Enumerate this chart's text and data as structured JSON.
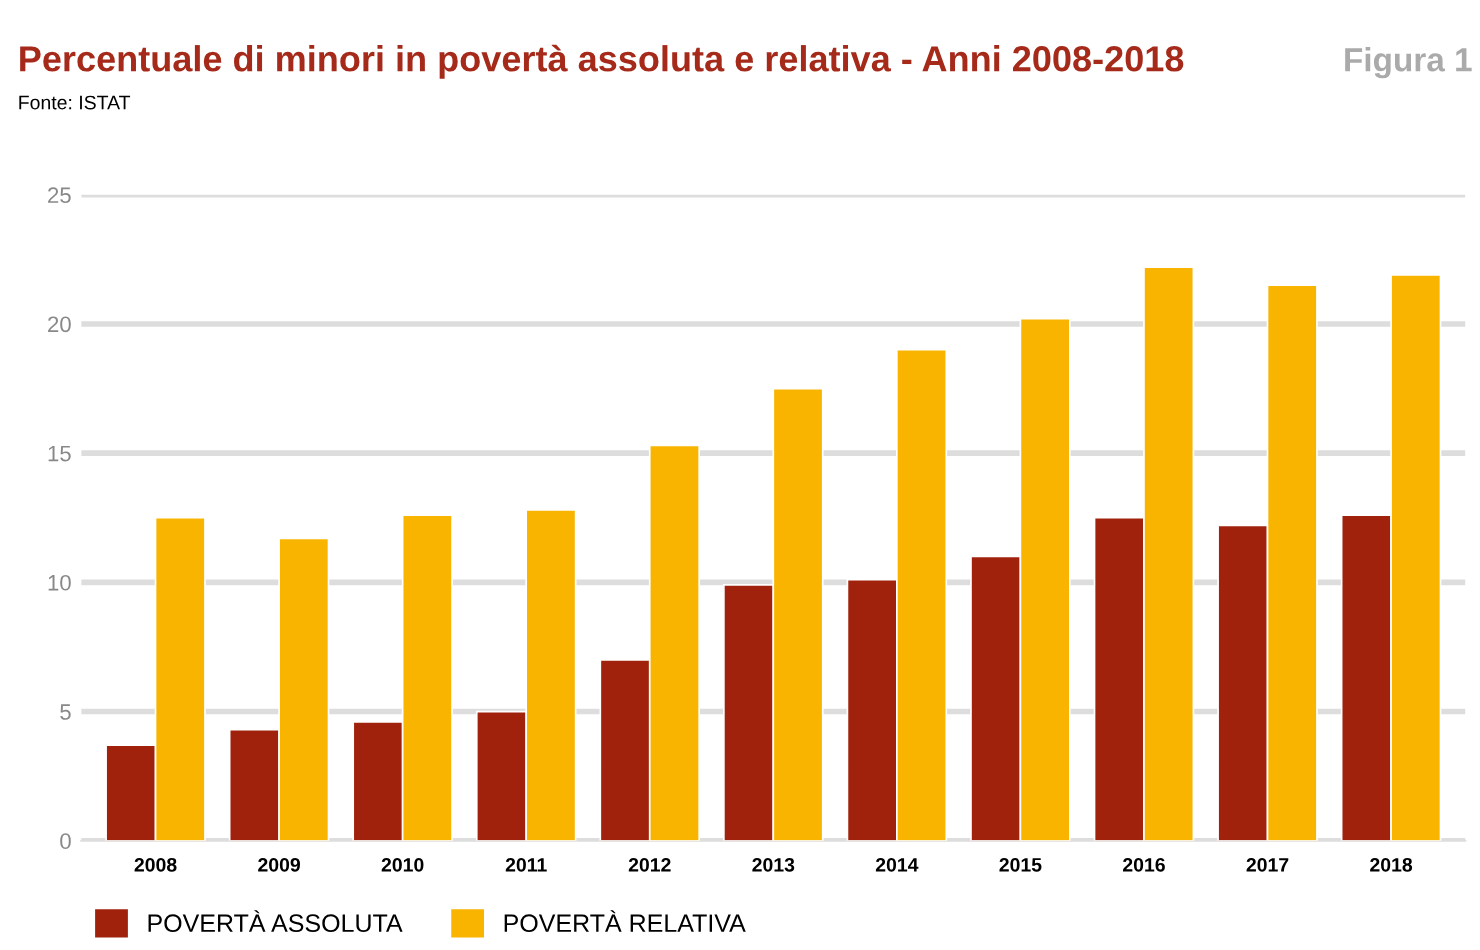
{
  "chart_data": {
    "type": "bar",
    "title": "Percentuale di minori in povertà assoluta e relativa - Anni 2008-2018",
    "annotations": [
      "Fonte: ISTAT",
      "Figura 1"
    ],
    "categories": [
      "2008",
      "2009",
      "2010",
      "2011",
      "2012",
      "2013",
      "2014",
      "2015",
      "2016",
      "2017",
      "2018"
    ],
    "series": [
      {
        "name": "POVERTÀ ASSOLUTA",
        "color": "#a0220c",
        "values": [
          3.7,
          4.3,
          4.6,
          5.0,
          7.0,
          9.9,
          10.1,
          11.0,
          12.5,
          12.2,
          12.6
        ]
      },
      {
        "name": "POVERTÀ RELATIVA",
        "color": "#f9b400",
        "values": [
          12.5,
          11.7,
          12.6,
          12.8,
          15.3,
          17.5,
          19.0,
          20.2,
          22.2,
          21.5,
          21.9
        ]
      }
    ],
    "ylim": [
      0,
      25
    ],
    "yticks": [
      0,
      5,
      10,
      15,
      20,
      25
    ],
    "grid": "y",
    "legend": "bottom left"
  }
}
